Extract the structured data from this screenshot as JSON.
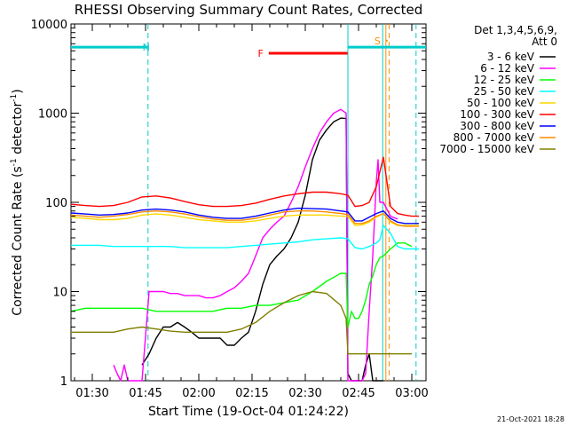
{
  "chart_data": {
    "type": "line",
    "title": "RHESSI Observing Summary Count Rates, Corrected",
    "xlabel": "Start Time (19-Oct-04 01:24:22)",
    "ylabel_prefix": "Corrected Count Rate (s",
    "ylabel_exp1": "-1",
    "ylabel_mid": " detector",
    "ylabel_exp2": "-1",
    "ylabel_suffix": ")",
    "xlim": [
      84,
      184
    ],
    "ylim": [
      1,
      10000
    ],
    "yscale": "log",
    "x_unit": "minutes after 00:00 UT on 19-Oct-04",
    "xticks": [
      {
        "value": 90,
        "label": "01:30"
      },
      {
        "value": 105,
        "label": "01:45"
      },
      {
        "value": 120,
        "label": "02:00"
      },
      {
        "value": 135,
        "label": "02:15"
      },
      {
        "value": 150,
        "label": "02:30"
      },
      {
        "value": 165,
        "label": "02:45"
      },
      {
        "value": 180,
        "label": "03:00"
      }
    ],
    "yticks": [
      {
        "value": 1,
        "label": "1"
      },
      {
        "value": 10,
        "label": "10"
      },
      {
        "value": 100,
        "label": "100"
      },
      {
        "value": 1000,
        "label": "1000"
      },
      {
        "value": 10000,
        "label": "10000"
      }
    ],
    "legend_header": [
      "Det 1,3,4,5,6,9,",
      "Att 0"
    ],
    "legend_position": "right",
    "series": [
      {
        "name": "3 - 6 keV",
        "color": "#000000",
        "x": [
          104,
          106,
          108,
          110,
          112,
          114,
          116,
          118,
          120,
          122,
          124,
          126,
          128,
          130,
          132,
          134,
          136,
          138,
          140,
          142,
          144,
          146,
          148,
          150,
          152,
          154,
          156,
          158,
          160,
          161.5,
          162,
          163,
          164.5,
          165,
          166,
          167,
          168,
          169,
          170,
          171,
          172
        ],
        "y": [
          1.5,
          2,
          3,
          4,
          4,
          4.5,
          4,
          3.5,
          3,
          3,
          3,
          3,
          2.5,
          2.5,
          3,
          3.5,
          6,
          12,
          20,
          25,
          30,
          40,
          60,
          120,
          300,
          500,
          650,
          800,
          880,
          870,
          1.2,
          1,
          1,
          1,
          1,
          1.5,
          2,
          1,
          1,
          1,
          1
        ]
      },
      {
        "name": "6 - 12 keV",
        "color": "#ff00ff",
        "x": [
          96,
          97,
          98,
          99,
          100,
          101,
          102,
          103,
          104,
          106,
          108,
          110,
          112,
          114,
          116,
          118,
          120,
          122,
          124,
          126,
          128,
          130,
          132,
          134,
          136,
          138,
          140,
          142,
          144,
          146,
          148,
          150,
          152,
          154,
          156,
          158,
          160,
          161.5,
          162,
          166,
          167,
          168,
          169,
          170,
          170.5,
          171,
          172,
          174,
          176
        ],
        "y": [
          1.5,
          1.2,
          1,
          1.5,
          1,
          1,
          1,
          1,
          1,
          10,
          10,
          10,
          9.5,
          9.5,
          9,
          9,
          9,
          8.5,
          8.5,
          9,
          10,
          11,
          13,
          16,
          25,
          40,
          50,
          60,
          70,
          100,
          150,
          250,
          400,
          600,
          800,
          1000,
          1100,
          1000,
          1,
          1,
          1.2,
          6,
          25,
          170,
          300,
          100,
          100,
          70,
          65
        ]
      },
      {
        "name": "12 - 25 keV",
        "color": "#00ff00",
        "x": [
          84,
          88,
          92,
          96,
          100,
          104,
          108,
          112,
          116,
          120,
          124,
          128,
          132,
          136,
          140,
          144,
          148,
          152,
          156,
          160,
          161.5,
          162,
          163,
          164,
          165,
          166,
          167,
          168,
          169,
          170,
          171,
          172,
          174,
          176,
          178,
          180
        ],
        "y": [
          6,
          6.5,
          6.5,
          6.5,
          6.5,
          6.5,
          6,
          6,
          6,
          6,
          6,
          6.5,
          6.5,
          7,
          7,
          7.5,
          8,
          10,
          13,
          16,
          16,
          4,
          6,
          5,
          5,
          6,
          8,
          12,
          15,
          20,
          24,
          25,
          30,
          35,
          35,
          32
        ]
      },
      {
        "name": "25 - 50 keV",
        "color": "#00ffff",
        "x": [
          84,
          88,
          92,
          96,
          100,
          104,
          108,
          112,
          116,
          120,
          124,
          128,
          132,
          136,
          140,
          144,
          148,
          152,
          156,
          160,
          162,
          164,
          166,
          168,
          170,
          171,
          172,
          174,
          176,
          178,
          180,
          182
        ],
        "y": [
          33,
          33,
          33,
          32,
          32,
          32,
          32,
          32,
          31,
          31,
          31,
          31,
          32,
          33,
          34,
          35,
          36,
          38,
          39,
          40,
          39,
          31,
          30,
          32,
          35,
          38,
          55,
          45,
          32,
          30,
          30,
          30
        ]
      },
      {
        "name": "50 - 100 keV",
        "color": "#ffd700",
        "x": [
          84,
          88,
          92,
          96,
          100,
          104,
          108,
          112,
          116,
          120,
          124,
          128,
          132,
          136,
          140,
          144,
          148,
          152,
          156,
          160,
          162,
          164,
          166,
          168,
          170,
          172,
          174,
          176,
          178,
          180,
          182
        ],
        "y": [
          68,
          66,
          64,
          64,
          66,
          72,
          74,
          72,
          68,
          64,
          62,
          60,
          60,
          62,
          66,
          70,
          72,
          72,
          72,
          70,
          70,
          55,
          56,
          60,
          68,
          75,
          60,
          55,
          55,
          55,
          55
        ]
      },
      {
        "name": "100 - 300 keV",
        "color": "#ff0000",
        "x": [
          84,
          88,
          92,
          96,
          100,
          104,
          108,
          112,
          116,
          120,
          124,
          128,
          132,
          136,
          140,
          144,
          148,
          152,
          156,
          160,
          162,
          164,
          166,
          168,
          170,
          172,
          174,
          176,
          178,
          180,
          182
        ],
        "y": [
          95,
          92,
          90,
          92,
          100,
          115,
          118,
          112,
          102,
          94,
          90,
          90,
          92,
          98,
          108,
          118,
          125,
          130,
          130,
          125,
          120,
          90,
          92,
          100,
          150,
          320,
          90,
          75,
          72,
          70,
          70
        ]
      },
      {
        "name": "300 - 800 keV",
        "color": "#0000ff",
        "x": [
          84,
          88,
          92,
          96,
          100,
          104,
          108,
          112,
          116,
          120,
          124,
          128,
          132,
          136,
          140,
          144,
          148,
          152,
          156,
          160,
          162,
          164,
          166,
          168,
          170,
          172,
          174,
          176,
          178,
          180,
          182
        ],
        "y": [
          76,
          74,
          72,
          73,
          76,
          82,
          84,
          82,
          78,
          72,
          68,
          66,
          66,
          70,
          76,
          82,
          86,
          85,
          84,
          80,
          78,
          62,
          62,
          68,
          75,
          80,
          66,
          60,
          58,
          58,
          58
        ]
      },
      {
        "name": "800 - 7000 keV",
        "color": "#ff8c00",
        "x": [
          84,
          88,
          92,
          96,
          100,
          104,
          108,
          112,
          116,
          120,
          124,
          128,
          132,
          136,
          140,
          144,
          148,
          152,
          156,
          160,
          162,
          164,
          166,
          168,
          170,
          172,
          174,
          176,
          178,
          180,
          182
        ],
        "y": [
          72,
          70,
          68,
          70,
          73,
          78,
          80,
          78,
          74,
          69,
          65,
          63,
          63,
          66,
          72,
          78,
          80,
          80,
          78,
          75,
          73,
          58,
          58,
          62,
          70,
          75,
          62,
          56,
          54,
          54,
          54
        ]
      },
      {
        "name": "7000 - 15000 keV",
        "color": "#808000",
        "x": [
          84,
          88,
          92,
          96,
          100,
          104,
          108,
          112,
          116,
          120,
          124,
          128,
          132,
          136,
          140,
          144,
          148,
          152,
          156,
          160,
          161.5,
          162,
          164,
          166,
          168,
          170,
          172,
          174,
          176,
          178,
          180
        ],
        "y": [
          3.5,
          3.5,
          3.5,
          3.5,
          3.8,
          4,
          3.8,
          3.6,
          3.5,
          3.5,
          3.5,
          3.5,
          3.8,
          4.5,
          6,
          7.5,
          9,
          10,
          9.5,
          7,
          5,
          2,
          2,
          2,
          2,
          2,
          2,
          2,
          2,
          2,
          2
        ]
      }
    ],
    "annotations": [
      {
        "label": "N",
        "color": "#00cccc",
        "kind": "night",
        "from": 84,
        "to": 105.7,
        "level": 5500
      },
      {
        "label": "N",
        "color": "#00cccc",
        "kind": "night",
        "from": 162,
        "to": 184,
        "level": 5500
      },
      {
        "label": "F",
        "color": "#ff0000",
        "kind": "flare",
        "from": 139.7,
        "to": 161.9,
        "level": 4700
      },
      {
        "label": "S",
        "color": "#ff8c00",
        "kind": "saa",
        "from": 172.7,
        "to": 173.2,
        "level": 6500
      }
    ],
    "vlines": [
      {
        "x": 105.7,
        "color": "#00cccc",
        "style": "dashed"
      },
      {
        "x": 162,
        "color": "#00cccc",
        "style": "solid"
      },
      {
        "x": 171.8,
        "color": "#00cccc",
        "style": "solid"
      },
      {
        "x": 172.7,
        "color": "#ff8c00",
        "style": "solid"
      },
      {
        "x": 173.6,
        "color": "#ff8c00",
        "style": "dashed"
      },
      {
        "x": 181.2,
        "color": "#00cccc",
        "style": "dashed"
      }
    ]
  },
  "footer": {
    "timestamp": "21-Oct-2021 18:28"
  }
}
